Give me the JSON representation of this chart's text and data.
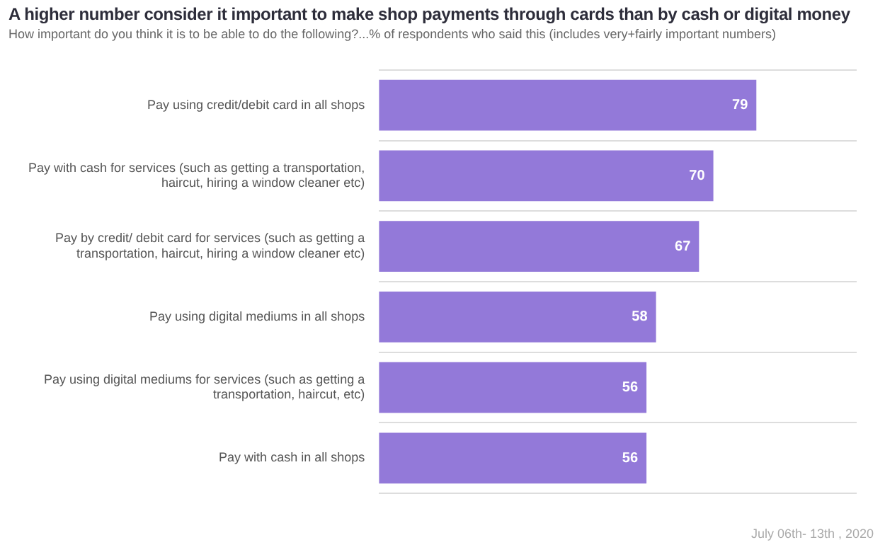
{
  "chart_data": {
    "type": "bar",
    "orientation": "horizontal",
    "title": "A higher number consider it important to make shop payments through cards than by cash or digital money",
    "subtitle": "How important do you think it is to be able to do the following?...% of respondents who said this (includes very+fairly important numbers)",
    "categories": [
      "Pay using credit/debit card in all shops",
      "Pay with cash for services (such as getting a transportation, haircut, hiring a window cleaner etc)",
      "Pay by credit/ debit card for services (such as getting a transportation, haircut, hiring a window cleaner etc)",
      "Pay using digital mediums in all shops",
      "Pay using digital mediums for services (such as getting a transportation, haircut, etc)",
      "Pay with cash in all shops"
    ],
    "values": [
      79,
      70,
      67,
      58,
      56,
      56
    ],
    "color": "#9379d9",
    "data_labels": true,
    "grid": "y",
    "legend": false,
    "tick_labels": "y",
    "annotations": [
      "July 06th- 13th , 2020"
    ]
  }
}
